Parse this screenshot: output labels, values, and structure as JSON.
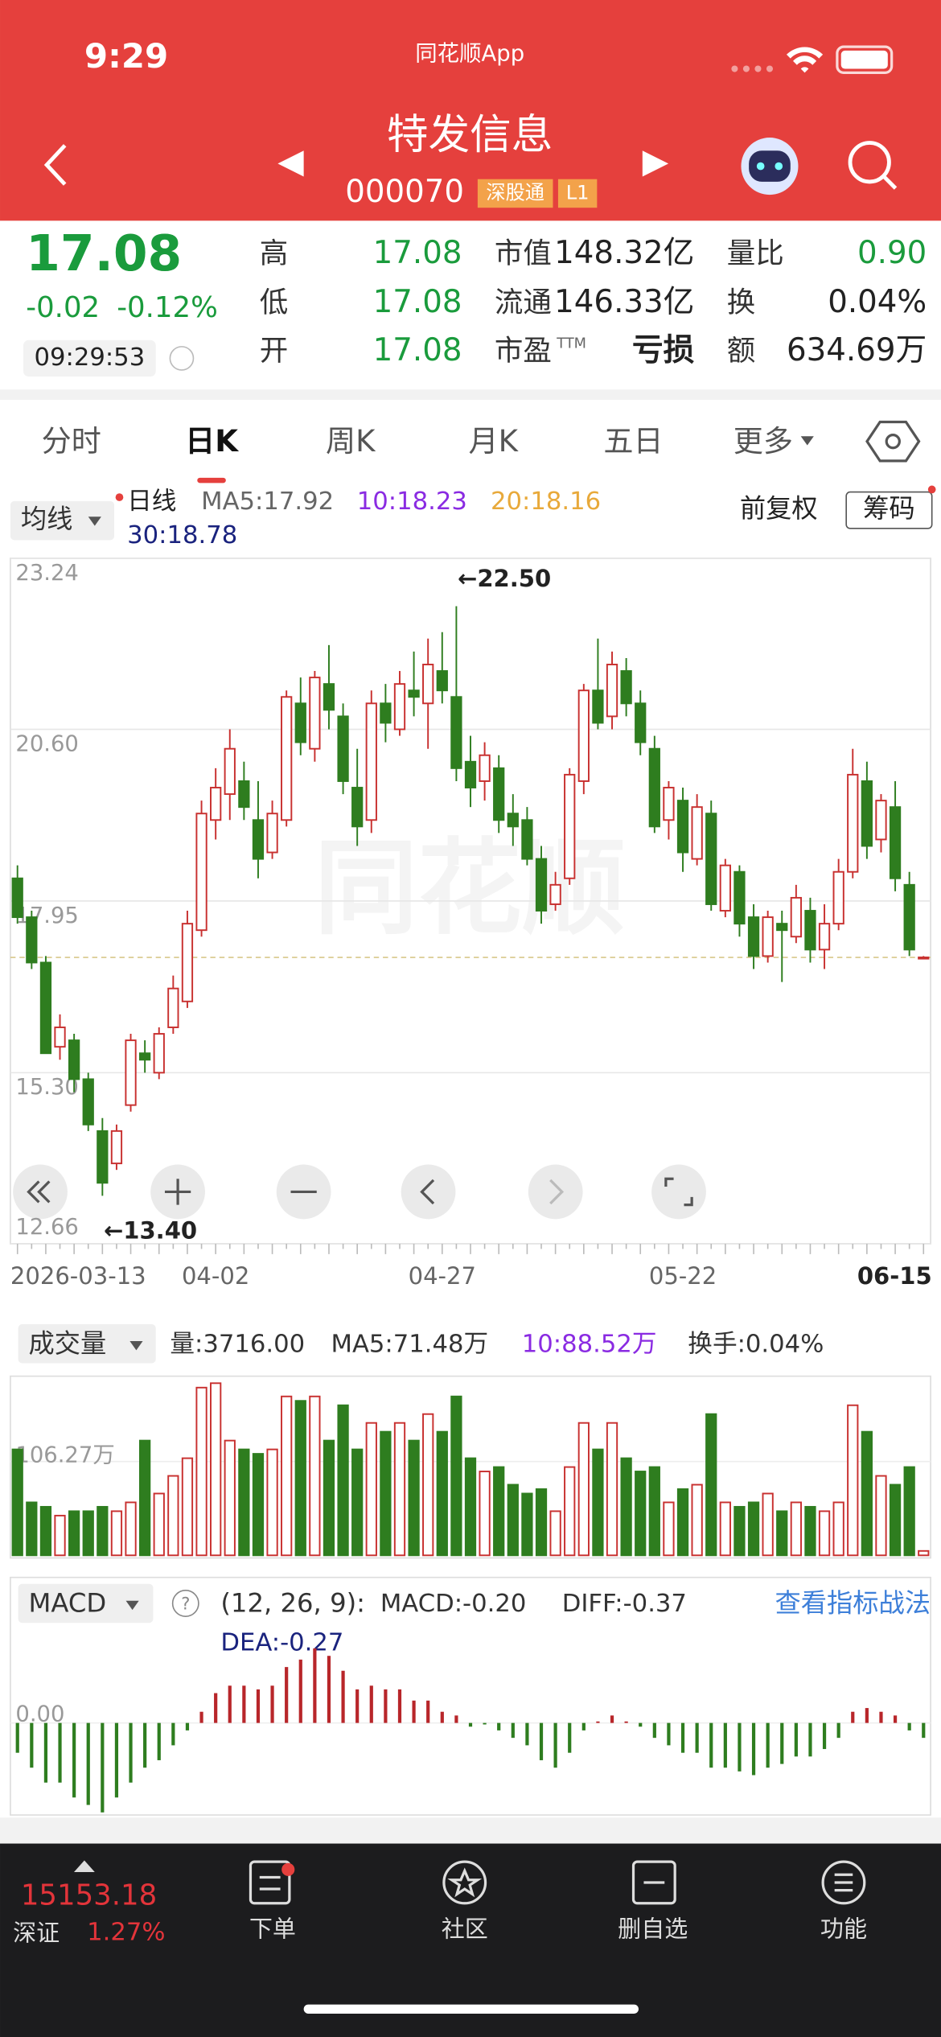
{
  "status_bar": {
    "time": "9:29",
    "app": "同花顺App"
  },
  "header": {
    "name": "特发信息",
    "code": "000070",
    "badges": [
      "深股通",
      "L1"
    ]
  },
  "quote": {
    "price": "17.08",
    "change": "-0.02",
    "change_pct": "-0.12%",
    "time": "09:29:53",
    "fields": [
      [
        {
          "label": "高",
          "value": "17.08"
        },
        {
          "label": "市值",
          "value": "148.32亿"
        },
        {
          "label": "量比",
          "value": "0.90"
        }
      ],
      [
        {
          "label": "低",
          "value": "17.08"
        },
        {
          "label": "流通",
          "value": "146.33亿"
        },
        {
          "label": "换",
          "value": "0.04%"
        }
      ],
      [
        {
          "label": "开",
          "value": "17.08"
        },
        {
          "label": "市盈",
          "sup": "TTM",
          "value": "亏损"
        },
        {
          "label": "额",
          "value": "634.69万"
        }
      ]
    ]
  },
  "tabs": [
    "分时",
    "日K",
    "周K",
    "月K",
    "五日",
    "更多"
  ],
  "active_tab": 1,
  "chart_toolbar": {
    "ma_button": "均线",
    "adjust": "前复权",
    "chips": "筹码"
  },
  "volume_toolbar": {
    "button": "成交量"
  },
  "macd_toolbar": {
    "button": "MACD",
    "params": "(12, 26, 9):",
    "link": "查看指标战法"
  },
  "bottom_bar": {
    "index_value": "15153.18",
    "index_name": "深证",
    "index_change": "1.27%",
    "items": [
      "下单",
      "社区",
      "删自选",
      "功能"
    ]
  },
  "chart_data": [
    {
      "type": "candlestick",
      "up_color": "#c8302f",
      "down_color": "#2e7d1f",
      "legend": [
        {
          "text": "日线",
          "color": "#222222"
        },
        {
          "text": "MA5:17.92",
          "color": "#666666"
        },
        {
          "text": "10:18.23",
          "color": "#8a2be2"
        },
        {
          "text": "20:18.16",
          "color": "#e8a93a"
        },
        {
          "text": "30:18.78",
          "color": "#1a237e"
        }
      ],
      "categories": [
        "2026-03-13",
        null,
        null,
        null,
        null,
        null,
        null,
        null,
        null,
        null,
        null,
        null,
        null,
        null,
        "04-02",
        null,
        null,
        null,
        null,
        null,
        null,
        null,
        null,
        null,
        null,
        null,
        null,
        null,
        null,
        null,
        "04-27",
        null,
        null,
        null,
        null,
        null,
        null,
        null,
        null,
        null,
        null,
        null,
        null,
        null,
        null,
        null,
        null,
        "05-22",
        null,
        null,
        null,
        null,
        null,
        null,
        null,
        null,
        null,
        null,
        null,
        null,
        null,
        null,
        null,
        null,
        "06-15"
      ],
      "open": [
        18.3,
        17.7,
        17.0,
        15.7,
        15.8,
        15.2,
        14.4,
        13.9,
        14.8,
        15.6,
        15.3,
        16.0,
        16.4,
        17.5,
        19.2,
        19.6,
        19.8,
        19.2,
        18.7,
        19.2,
        21.0,
        20.3,
        21.3,
        20.8,
        19.7,
        19.2,
        21.0,
        20.6,
        21.2,
        21.0,
        21.5,
        21.1,
        20.1,
        19.8,
        20.0,
        19.3,
        19.2,
        18.6,
        17.9,
        18.3,
        19.8,
        21.2,
        20.8,
        21.5,
        21.0,
        20.3,
        19.2,
        19.5,
        18.6,
        19.3,
        17.8,
        18.4,
        17.7,
        17.1,
        17.6,
        17.4,
        17.8,
        17.2,
        17.6,
        18.4,
        19.8,
        18.9,
        19.4,
        18.2,
        17.08
      ],
      "high": [
        18.5,
        17.8,
        17.1,
        16.2,
        15.9,
        15.3,
        14.6,
        14.5,
        15.9,
        15.8,
        16.0,
        16.8,
        17.8,
        19.5,
        20.0,
        20.6,
        20.1,
        19.8,
        19.5,
        21.2,
        21.4,
        21.5,
        21.9,
        21.0,
        20.3,
        21.2,
        21.3,
        21.5,
        21.8,
        22.0,
        22.1,
        22.5,
        20.5,
        20.4,
        20.2,
        19.6,
        19.4,
        18.8,
        18.4,
        20.0,
        21.3,
        22.0,
        21.8,
        21.7,
        21.2,
        20.5,
        19.8,
        19.7,
        19.6,
        19.5,
        18.6,
        18.5,
        17.9,
        17.8,
        17.8,
        18.2,
        18.0,
        17.9,
        18.6,
        20.3,
        20.1,
        19.6,
        19.8,
        18.4,
        17.1
      ],
      "low": [
        17.6,
        16.9,
        15.6,
        15.5,
        15.0,
        14.4,
        13.4,
        13.8,
        14.7,
        15.3,
        15.2,
        15.9,
        16.3,
        17.4,
        18.9,
        19.2,
        19.2,
        18.3,
        18.6,
        19.1,
        20.2,
        20.1,
        20.6,
        19.6,
        18.8,
        19.0,
        20.4,
        20.5,
        20.8,
        20.3,
        21.0,
        19.8,
        19.4,
        19.5,
        19.0,
        18.8,
        18.5,
        17.6,
        17.8,
        18.2,
        19.6,
        20.6,
        20.6,
        20.8,
        20.2,
        19.0,
        18.9,
        18.4,
        18.5,
        17.8,
        17.7,
        17.4,
        16.9,
        17.0,
        16.7,
        17.3,
        17.0,
        16.9,
        17.5,
        18.3,
        18.6,
        18.7,
        18.1,
        17.1,
        17.08
      ],
      "close": [
        17.7,
        17.0,
        15.6,
        16.0,
        15.2,
        14.5,
        13.6,
        14.4,
        15.8,
        15.5,
        15.9,
        16.6,
        17.6,
        19.3,
        19.7,
        20.3,
        19.4,
        18.6,
        19.3,
        21.1,
        20.4,
        21.4,
        20.9,
        19.8,
        19.1,
        21.0,
        20.7,
        21.3,
        21.1,
        21.6,
        21.2,
        20.0,
        19.7,
        20.2,
        19.2,
        19.1,
        18.6,
        17.8,
        18.2,
        19.9,
        21.2,
        20.7,
        21.6,
        21.0,
        20.4,
        19.1,
        19.7,
        18.7,
        19.4,
        17.9,
        18.5,
        17.6,
        17.1,
        17.7,
        17.5,
        18.0,
        17.2,
        17.6,
        18.4,
        19.9,
        18.8,
        19.5,
        18.3,
        17.2,
        17.08
      ],
      "ylim": [
        12.66,
        23.24
      ],
      "yticks": [
        23.24,
        {
          "value": 20.6,
          "label": "20.60"
        },
        17.95,
        {
          "value": 15.3,
          "label": "15.30"
        },
        12.66
      ],
      "reference_line": 17.08,
      "annotations": [
        "←22.50",
        "←13.40"
      ],
      "grid": true
    },
    {
      "type": "bar",
      "legend": [
        {
          "text": "量:3716.00",
          "color": "#333333"
        },
        {
          "text": "MA5:71.48万",
          "color": "#333333"
        },
        {
          "text": "10:88.52万",
          "color": "#8a2be2"
        },
        {
          "text": "换手:0.04%",
          "color": "#333333"
        }
      ],
      "values": [
        120,
        60,
        55,
        45,
        50,
        50,
        55,
        50,
        60,
        130,
        70,
        90,
        110,
        190,
        195,
        130,
        120,
        115,
        120,
        180,
        175,
        180,
        130,
        170,
        120,
        150,
        140,
        150,
        130,
        160,
        140,
        180,
        110,
        95,
        100,
        80,
        70,
        75,
        50,
        100,
        150,
        120,
        150,
        110,
        95,
        100,
        60,
        75,
        80,
        160,
        60,
        55,
        60,
        70,
        50,
        60,
        55,
        50,
        60,
        170,
        140,
        90,
        80,
        100,
        5
      ],
      "ylim": [
        0,
        200
      ],
      "yticks": [
        {
          "value": 106.27,
          "label": "106.27万"
        }
      ]
    },
    {
      "type": "bar",
      "legend": [
        {
          "text": "MACD:-0.20",
          "color": "#333333"
        },
        {
          "text": "DIFF:-0.37",
          "color": "#333333"
        },
        {
          "text": "DEA:-0.27",
          "color": "#1a237e"
        }
      ],
      "values": [
        -0.4,
        -0.6,
        -0.8,
        -0.8,
        -1.0,
        -1.1,
        -1.2,
        -1.0,
        -0.8,
        -0.6,
        -0.5,
        -0.3,
        -0.1,
        0.15,
        0.4,
        0.5,
        0.5,
        0.45,
        0.5,
        0.75,
        0.85,
        1.0,
        0.9,
        0.7,
        0.45,
        0.5,
        0.45,
        0.45,
        0.3,
        0.3,
        0.15,
        0.1,
        -0.05,
        -0.02,
        -0.1,
        -0.2,
        -0.3,
        -0.5,
        -0.6,
        -0.4,
        -0.1,
        0.02,
        0.1,
        0.02,
        -0.05,
        -0.2,
        -0.3,
        -0.4,
        -0.4,
        -0.6,
        -0.6,
        -0.65,
        -0.7,
        -0.6,
        -0.55,
        -0.45,
        -0.45,
        -0.35,
        -0.2,
        0.15,
        0.2,
        0.15,
        0.1,
        -0.1,
        -0.2
      ],
      "ylim": [
        -1.2,
        1.9
      ],
      "yticks": [
        {
          "value": 0,
          "label": "0.00"
        }
      ],
      "pos_color": "#b8262a",
      "neg_color": "#2e7d1f"
    }
  ]
}
